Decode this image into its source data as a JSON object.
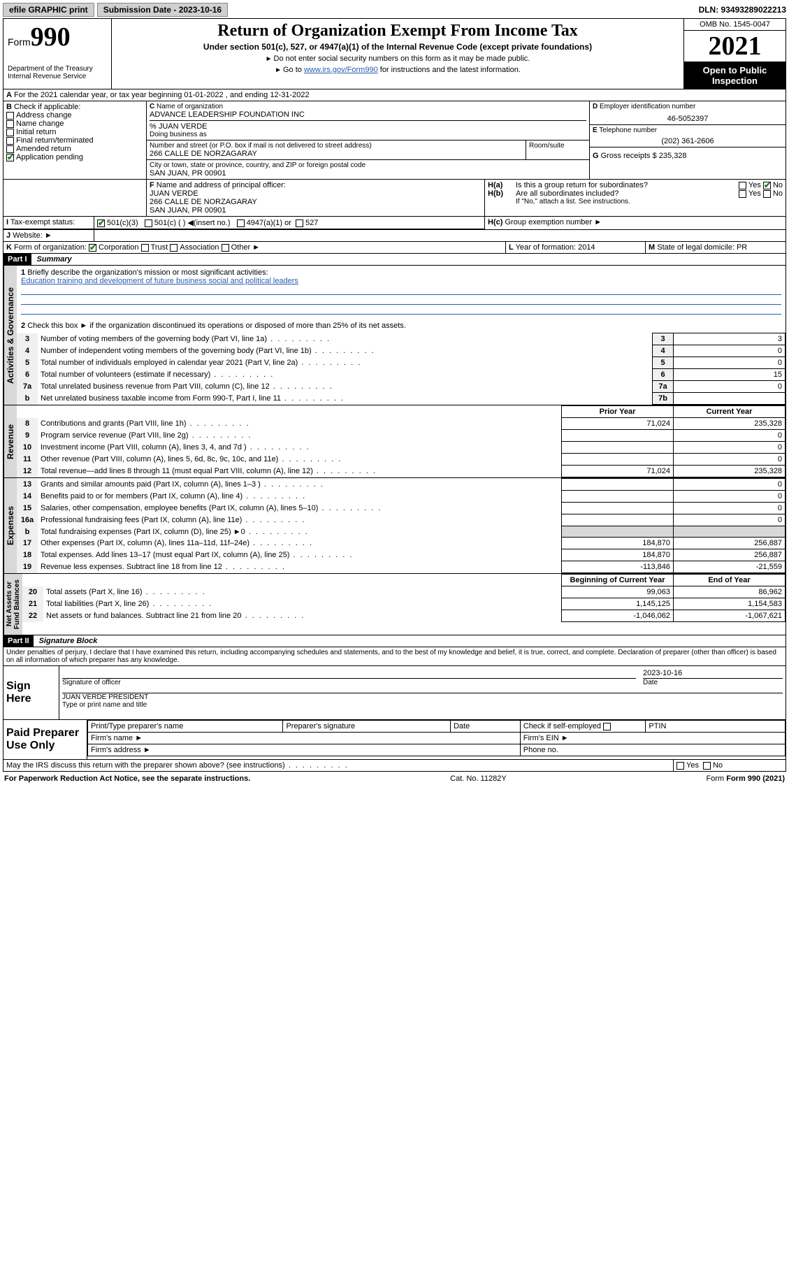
{
  "topbar": {
    "efile": "efile GRAPHIC print",
    "submission_label": "Submission Date - 2023-10-16",
    "dln": "DLN: 93493289022213"
  },
  "header": {
    "form_word": "Form",
    "form_num": "990",
    "dept": "Department of the Treasury",
    "irs": "Internal Revenue Service",
    "title": "Return of Organization Exempt From Income Tax",
    "subtitle": "Under section 501(c), 527, or 4947(a)(1) of the Internal Revenue Code (except private foundations)",
    "instr1": "Do not enter social security numbers on this form as it may be made public.",
    "instr2_pre": "Go to ",
    "instr2_link": "www.irs.gov/Form990",
    "instr2_post": " for instructions and the latest information.",
    "omb": "OMB No. 1545-0047",
    "year": "2021",
    "open": "Open to Public Inspection"
  },
  "A": {
    "text": "For the 2021 calendar year, or tax year beginning 01-01-2022   , and ending 12-31-2022"
  },
  "B": {
    "label": "Check if applicable:",
    "opts": [
      "Address change",
      "Name change",
      "Initial return",
      "Final return/terminated",
      "Amended return",
      "Application pending"
    ]
  },
  "C": {
    "name_label": "Name of organization",
    "name": "ADVANCE LEADERSHIP FOUNDATION INC",
    "care": "% JUAN VERDE",
    "dba_label": "Doing business as",
    "street_label": "Number and street (or P.O. box if mail is not delivered to street address)",
    "room_label": "Room/suite",
    "street": "266 CALLE DE NORZAGARAY",
    "city_label": "City or town, state or province, country, and ZIP or foreign postal code",
    "city": "SAN JUAN, PR  00901"
  },
  "D": {
    "label": "Employer identification number",
    "value": "46-5052397"
  },
  "E": {
    "label": "Telephone number",
    "value": "(202) 361-2606"
  },
  "G": {
    "label": "Gross receipts $",
    "value": "235,328"
  },
  "F": {
    "label": "Name and address of principal officer:",
    "name": "JUAN VERDE",
    "addr1": "266 CALLE DE NORZAGARAY",
    "addr2": "SAN JUAN, PR  00901"
  },
  "H": {
    "a": "Is this a group return for subordinates?",
    "b": "Are all subordinates included?",
    "b_note": "If \"No,\" attach a list. See instructions.",
    "c": "Group exemption number"
  },
  "I": {
    "label": "Tax-exempt status:",
    "opts": [
      "501(c)(3)",
      "501(c) (  ) ◀(insert no.)",
      "4947(a)(1) or",
      "527"
    ]
  },
  "J": {
    "label": "Website:"
  },
  "K": {
    "label": "Form of organization:",
    "opts": [
      "Corporation",
      "Trust",
      "Association",
      "Other"
    ]
  },
  "L": {
    "label": "Year of formation:",
    "value": "2014"
  },
  "M": {
    "label": "State of legal domicile:",
    "value": "PR"
  },
  "partI": {
    "hdr": "Part I",
    "title": "Summary",
    "line1_label": "Briefly describe the organization's mission or most significant activities:",
    "line1_text": "Education training and development of future business social and political leaders",
    "line2": "Check this box ►   if the organization discontinued its operations or disposed of more than 25% of its net assets.",
    "rows_a": [
      {
        "n": "3",
        "t": "Number of voting members of the governing body (Part VI, line 1a)",
        "box": "3",
        "v": "3"
      },
      {
        "n": "4",
        "t": "Number of independent voting members of the governing body (Part VI, line 1b)",
        "box": "4",
        "v": "0"
      },
      {
        "n": "5",
        "t": "Total number of individuals employed in calendar year 2021 (Part V, line 2a)",
        "box": "5",
        "v": "0"
      },
      {
        "n": "6",
        "t": "Total number of volunteers (estimate if necessary)",
        "box": "6",
        "v": "15"
      },
      {
        "n": "7a",
        "t": "Total unrelated business revenue from Part VIII, column (C), line 12",
        "box": "7a",
        "v": "0"
      },
      {
        "n": "b",
        "t": "Net unrelated business taxable income from Form 990-T, Part I, line 11",
        "box": "7b",
        "v": ""
      }
    ],
    "col_prior": "Prior Year",
    "col_curr": "Current Year",
    "rev_rows": [
      {
        "n": "8",
        "t": "Contributions and grants (Part VIII, line 1h)",
        "p": "71,024",
        "c": "235,328"
      },
      {
        "n": "9",
        "t": "Program service revenue (Part VIII, line 2g)",
        "p": "",
        "c": "0"
      },
      {
        "n": "10",
        "t": "Investment income (Part VIII, column (A), lines 3, 4, and 7d )",
        "p": "",
        "c": "0"
      },
      {
        "n": "11",
        "t": "Other revenue (Part VIII, column (A), lines 5, 6d, 8c, 9c, 10c, and 11e)",
        "p": "",
        "c": "0"
      },
      {
        "n": "12",
        "t": "Total revenue—add lines 8 through 11 (must equal Part VIII, column (A), line 12)",
        "p": "71,024",
        "c": "235,328"
      }
    ],
    "exp_rows": [
      {
        "n": "13",
        "t": "Grants and similar amounts paid (Part IX, column (A), lines 1–3 )",
        "p": "",
        "c": "0"
      },
      {
        "n": "14",
        "t": "Benefits paid to or for members (Part IX, column (A), line 4)",
        "p": "",
        "c": "0"
      },
      {
        "n": "15",
        "t": "Salaries, other compensation, employee benefits (Part IX, column (A), lines 5–10)",
        "p": "",
        "c": "0"
      },
      {
        "n": "16a",
        "t": "Professional fundraising fees (Part IX, column (A), line 11e)",
        "p": "",
        "c": "0"
      },
      {
        "n": "b",
        "t": "Total fundraising expenses (Part IX, column (D), line 25) ►0",
        "p": "shade",
        "c": "shade"
      },
      {
        "n": "17",
        "t": "Other expenses (Part IX, column (A), lines 11a–11d, 11f–24e)",
        "p": "184,870",
        "c": "256,887"
      },
      {
        "n": "18",
        "t": "Total expenses. Add lines 13–17 (must equal Part IX, column (A), line 25)",
        "p": "184,870",
        "c": "256,887"
      },
      {
        "n": "19",
        "t": "Revenue less expenses. Subtract line 18 from line 12",
        "p": "-113,846",
        "c": "-21,559"
      }
    ],
    "col_begin": "Beginning of Current Year",
    "col_end": "End of Year",
    "net_rows": [
      {
        "n": "20",
        "t": "Total assets (Part X, line 16)",
        "p": "99,063",
        "c": "86,962"
      },
      {
        "n": "21",
        "t": "Total liabilities (Part X, line 26)",
        "p": "1,145,125",
        "c": "1,154,583"
      },
      {
        "n": "22",
        "t": "Net assets or fund balances. Subtract line 21 from line 20",
        "p": "-1,046,062",
        "c": "-1,067,621"
      }
    ]
  },
  "partII": {
    "hdr": "Part II",
    "title": "Signature Block",
    "jurat": "Under penalties of perjury, I declare that I have examined this return, including accompanying schedules and statements, and to the best of my knowledge and belief, it is true, correct, and complete. Declaration of preparer (other than officer) is based on all information of which preparer has any knowledge.",
    "sign_here": "Sign Here",
    "sig_officer": "Signature of officer",
    "sig_date": "2023-10-16",
    "date_label": "Date",
    "officer_name": "JUAN VERDE PRESIDENT",
    "officer_sub": "Type or print name and title",
    "paid": "Paid Preparer Use Only",
    "prep_name": "Print/Type preparer's name",
    "prep_sig": "Preparer's signature",
    "prep_date": "Date",
    "check_self": "Check     if self-employed",
    "ptin": "PTIN",
    "firm_name": "Firm's name",
    "firm_ein": "Firm's EIN",
    "firm_addr": "Firm's address",
    "phone": "Phone no.",
    "discuss": "May the IRS discuss this return with the preparer shown above? (see instructions)",
    "yes": "Yes",
    "no": "No"
  },
  "footer": {
    "pra": "For Paperwork Reduction Act Notice, see the separate instructions.",
    "cat": "Cat. No. 11282Y",
    "form": "Form 990 (2021)"
  }
}
